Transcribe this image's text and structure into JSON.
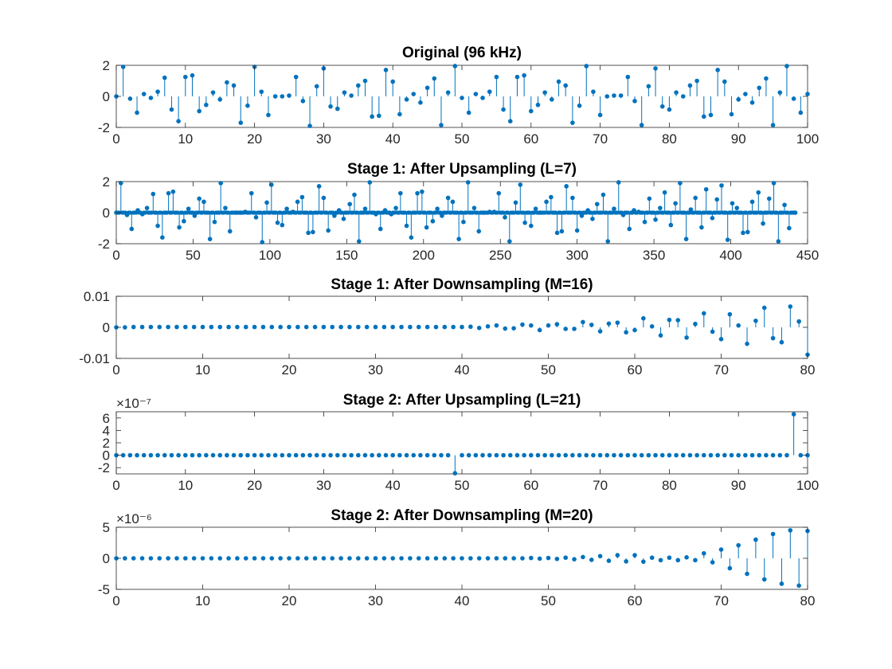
{
  "chart_data": [
    {
      "type": "stem",
      "title": "Original (96 kHz)",
      "xlim": [
        0,
        100
      ],
      "ylim": [
        -2,
        2
      ],
      "xticks": [
        0,
        10,
        20,
        30,
        40,
        50,
        60,
        70,
        80,
        90,
        100
      ],
      "xtick_labels": [
        "0",
        "10",
        "20",
        "30",
        "40",
        "50",
        "60",
        "70",
        "80",
        "90",
        "100"
      ],
      "yticks": [
        -2,
        0,
        2
      ],
      "ytick_labels": [
        "-2",
        "0",
        "2"
      ],
      "exponent_label": "",
      "x": [
        0,
        1,
        2,
        3,
        4,
        5,
        6,
        7,
        8,
        9,
        10,
        11,
        12,
        13,
        14,
        15,
        16,
        17,
        18,
        19,
        20,
        21,
        22,
        23,
        24,
        25,
        26,
        27,
        28,
        29,
        30,
        31,
        32,
        33,
        34,
        35,
        36,
        37,
        38,
        39,
        40,
        41,
        42,
        43,
        44,
        45,
        46,
        47,
        48,
        49,
        50,
        51,
        52,
        53,
        54,
        55,
        56,
        57,
        58,
        59,
        60,
        61,
        62,
        63,
        64,
        65,
        66,
        67,
        68,
        69,
        70,
        71,
        72,
        73,
        74,
        75,
        76,
        77,
        78,
        79,
        80,
        81,
        82,
        83,
        84,
        85,
        86,
        87,
        88,
        89,
        90,
        91,
        92,
        93,
        94,
        95,
        96,
        97,
        98,
        99,
        100
      ],
      "values": [
        0,
        1.9,
        -0.15,
        -1.05,
        0.15,
        -0.1,
        0.3,
        1.2,
        -0.85,
        -1.6,
        1.25,
        1.35,
        -0.95,
        -0.55,
        0.25,
        -0.2,
        0.9,
        0.7,
        -1.7,
        -0.6,
        1.9,
        0.3,
        -1.2,
        0.0,
        0.0,
        0.05,
        1.25,
        -0.3,
        -1.9,
        0.65,
        1.8,
        -0.65,
        -0.8,
        0.25,
        0.05,
        0.7,
        1.0,
        -1.3,
        -1.25,
        1.7,
        0.95,
        -1.15,
        -0.2,
        0.15,
        -0.4,
        0.55,
        1.15,
        -1.85,
        0.25,
        1.95,
        -0.1,
        -1.05,
        0.15,
        -0.1,
        0.3,
        1.25,
        -0.85,
        -1.6,
        1.25,
        1.35,
        -0.95,
        -0.55,
        0.25,
        -0.2,
        0.95,
        0.7,
        -1.7,
        -0.6,
        1.95,
        0.3,
        -1.2,
        0.0,
        0.05,
        0.05,
        1.25,
        -0.3,
        -1.85,
        0.65,
        1.8,
        -0.65,
        -0.85,
        0.25,
        0.0,
        0.7,
        1.0,
        -1.3,
        -1.2,
        1.7,
        0.95,
        -1.15,
        -0.2,
        0.15,
        -0.4,
        0.55,
        1.15,
        -1.85,
        0.25,
        1.95,
        -0.15,
        -1.05,
        0.15
      ]
    },
    {
      "type": "stem",
      "title": "Stage 1: After Upsampling (L=7)",
      "xlim": [
        0,
        450
      ],
      "ylim": [
        -2,
        2
      ],
      "xticks": [
        0,
        50,
        100,
        150,
        200,
        250,
        300,
        350,
        400,
        450
      ],
      "xtick_labels": [
        "0",
        "50",
        "100",
        "150",
        "200",
        "250",
        "300",
        "350",
        "400",
        "450"
      ],
      "yticks": [
        -2,
        0,
        2
      ],
      "ytick_labels": [
        "-2",
        "0",
        "2"
      ],
      "exponent_label": "",
      "x": [
        0,
        3,
        7,
        10,
        14,
        17,
        20,
        24,
        27,
        30,
        34,
        37,
        41,
        44,
        47,
        51,
        54,
        57,
        61,
        64,
        68,
        71,
        74,
        78,
        81,
        84,
        88,
        91,
        95,
        98,
        101,
        105,
        108,
        111,
        115,
        118,
        121,
        125,
        128,
        132,
        135,
        138,
        142,
        145,
        148,
        152,
        155,
        158,
        162,
        165,
        169,
        172,
        175,
        179,
        182,
        185,
        189,
        192,
        196,
        199,
        202,
        206,
        209,
        212,
        216,
        219,
        223,
        226,
        229,
        233,
        236,
        239,
        243,
        246,
        249,
        253,
        256,
        260,
        263,
        266,
        270,
        273,
        276,
        280,
        283,
        287,
        290,
        293,
        297,
        300,
        303,
        307,
        310,
        313,
        317,
        320,
        324,
        327,
        330,
        334,
        337,
        340,
        344,
        347,
        351,
        354,
        357,
        361,
        364,
        367,
        371,
        374,
        377,
        381,
        384,
        388,
        391,
        394,
        398,
        401,
        404,
        408,
        411,
        414,
        418,
        421,
        425,
        428,
        431,
        435,
        438,
        442
      ],
      "values": [
        0,
        1.9,
        -0.15,
        -1.05,
        0.15,
        -0.1,
        0.3,
        1.2,
        -0.85,
        -1.6,
        1.25,
        1.35,
        -0.95,
        -0.55,
        0.25,
        -0.2,
        0.9,
        0.7,
        -1.7,
        -0.6,
        1.9,
        0.3,
        -1.2,
        0.0,
        0.0,
        0.05,
        1.25,
        -0.3,
        -1.9,
        0.65,
        1.8,
        -0.65,
        -0.8,
        0.25,
        0.05,
        0.7,
        1.0,
        -1.3,
        -1.25,
        1.7,
        0.95,
        -1.15,
        -0.2,
        0.15,
        -0.4,
        0.55,
        1.15,
        -1.85,
        0.25,
        1.95,
        -0.1,
        -1.05,
        0.15,
        -0.1,
        0.3,
        1.25,
        -0.85,
        -1.6,
        1.25,
        1.35,
        -0.95,
        -0.55,
        0.25,
        -0.2,
        0.95,
        0.7,
        -1.7,
        -0.6,
        1.95,
        0.3,
        -1.2,
        0.0,
        0.05,
        0.05,
        1.25,
        -0.3,
        -1.85,
        0.65,
        1.8,
        -0.65,
        -0.85,
        0.25,
        0.0,
        0.7,
        1.0,
        -1.3,
        -1.2,
        1.7,
        0.95,
        -1.15,
        -0.2,
        0.15,
        -0.4,
        0.55,
        1.15,
        -1.85,
        0.25,
        1.95,
        -0.15,
        -1.05,
        0.15,
        0.05,
        -0.6,
        0.9,
        -0.45,
        0.3,
        1.3,
        -0.8,
        0.6,
        1.9,
        -1.7,
        0.2,
        0.95,
        -0.95,
        1.5,
        -0.35,
        0.85,
        1.75,
        -1.75,
        0.6,
        0.3,
        -1.3,
        -1.25,
        0.7,
        1.3,
        -0.7,
        0.9,
        1.9,
        -1.85,
        0.5,
        -1.0,
        0.0
      ],
      "zero_samples_between_nonzero": true
    },
    {
      "type": "stem",
      "title": "Stage 1: After Downsampling (M=16)",
      "xlim": [
        0,
        80
      ],
      "ylim": [
        -0.01,
        0.01
      ],
      "xticks": [
        0,
        10,
        20,
        30,
        40,
        50,
        60,
        70,
        80
      ],
      "xtick_labels": [
        "0",
        "10",
        "20",
        "30",
        "40",
        "50",
        "60",
        "70",
        "80"
      ],
      "yticks": [
        -0.01,
        0,
        0.01
      ],
      "ytick_labels": [
        "-0.01",
        "0",
        "0.01"
      ],
      "exponent_label": "",
      "x": [
        0,
        1,
        2,
        3,
        4,
        5,
        6,
        7,
        8,
        9,
        10,
        11,
        12,
        13,
        14,
        15,
        16,
        17,
        18,
        19,
        20,
        21,
        22,
        23,
        24,
        25,
        26,
        27,
        28,
        29,
        30,
        31,
        32,
        33,
        34,
        35,
        36,
        37,
        38,
        39,
        40,
        41,
        42,
        43,
        44,
        45,
        46,
        47,
        48,
        49,
        50,
        51,
        52,
        53,
        54,
        55,
        56,
        57,
        58,
        59,
        60,
        61,
        62,
        63,
        64,
        65,
        66,
        67,
        68,
        69,
        70,
        71,
        72,
        73,
        74,
        75,
        76,
        77,
        78,
        79,
        80
      ],
      "values": [
        0,
        0,
        0.0001,
        0.0001,
        0.0001,
        0.0001,
        0.0001,
        0.0001,
        0.0001,
        0.0001,
        0.0001,
        0.0001,
        0.0001,
        0.0001,
        0.0001,
        0.0001,
        0.0001,
        0.0001,
        0.0001,
        0.0001,
        0.0001,
        0.0001,
        0.0001,
        0.0001,
        0.0001,
        0.0001,
        0.0001,
        0.0001,
        0.0001,
        0.0001,
        0.0001,
        0.0001,
        0.0001,
        0.0001,
        0.0001,
        0.0001,
        0.0001,
        0.0001,
        0.0001,
        0.0001,
        0.0001,
        0.0002,
        -0.0002,
        0.0003,
        0.0006,
        -0.0004,
        -0.0003,
        0.0009,
        0.0006,
        -0.0009,
        0.0006,
        0.001,
        -0.0005,
        -0.0005,
        0.0017,
        0.0008,
        -0.0013,
        0.0012,
        0.0015,
        -0.0016,
        -0.0009,
        0.0029,
        0.0003,
        -0.0026,
        0.0024,
        0.0023,
        -0.0033,
        0.0011,
        0.0045,
        -0.0014,
        -0.0038,
        0.0042,
        0.0006,
        -0.0053,
        0.0021,
        0.0063,
        -0.0035,
        -0.0048,
        0.0067,
        0.0019,
        -0.0088
      ]
    },
    {
      "type": "stem",
      "title": "Stage 2: After Upsampling (L=21)",
      "xlim": [
        0,
        100
      ],
      "ylim": [
        -3e-07,
        7e-07
      ],
      "xticks": [
        0,
        10,
        20,
        30,
        40,
        50,
        60,
        70,
        80,
        90,
        100
      ],
      "xtick_labels": [
        "0",
        "10",
        "20",
        "30",
        "40",
        "50",
        "60",
        "70",
        "80",
        "90",
        "100"
      ],
      "yticks": [
        -2e-07,
        0,
        2e-07,
        4e-07,
        6e-07
      ],
      "ytick_labels": [
        "-2",
        "0",
        "2",
        "4",
        "6"
      ],
      "exponent_label": "×10⁻⁷",
      "x": [
        0,
        1,
        2,
        3,
        4,
        5,
        6,
        7,
        8,
        9,
        10,
        11,
        12,
        13,
        14,
        15,
        16,
        17,
        18,
        19,
        20,
        21,
        22,
        23,
        24,
        25,
        26,
        27,
        28,
        29,
        30,
        31,
        32,
        33,
        34,
        35,
        36,
        37,
        38,
        39,
        40,
        41,
        42,
        43,
        44,
        45,
        46,
        47,
        48,
        49,
        50,
        51,
        52,
        53,
        54,
        55,
        56,
        57,
        58,
        59,
        60,
        61,
        62,
        63,
        64,
        65,
        66,
        67,
        68,
        69,
        70,
        71,
        72,
        73,
        74,
        75,
        76,
        77,
        78,
        79,
        80,
        81,
        82,
        83,
        84,
        85,
        86,
        87,
        88,
        89,
        90,
        91,
        92,
        93,
        94,
        95,
        96,
        97,
        98,
        99,
        100
      ],
      "values": [
        0,
        0,
        0,
        0,
        0,
        0,
        0,
        0,
        0,
        0,
        0,
        0,
        0,
        0,
        0,
        0,
        0,
        0,
        0,
        0,
        0,
        0,
        0,
        0,
        0,
        0,
        0,
        0,
        0,
        0,
        0,
        0,
        0,
        0,
        0,
        0,
        0,
        0,
        0,
        0,
        0,
        0,
        0,
        0,
        0,
        0,
        0,
        0,
        0,
        -2.9e-07,
        0,
        0,
        0,
        0,
        0,
        0,
        0,
        0,
        0,
        0,
        0,
        0,
        0,
        0,
        0,
        0,
        0,
        0,
        0,
        0,
        0,
        0,
        0,
        0,
        0,
        0,
        0,
        0,
        0,
        0,
        0,
        0,
        0,
        0,
        0,
        0,
        0,
        0,
        0,
        0,
        0,
        0,
        0,
        0,
        0,
        0,
        0,
        0,
        6.6e-07,
        0,
        0
      ]
    },
    {
      "type": "stem",
      "title": "Stage 2: After Downsampling (M=20)",
      "xlim": [
        0,
        80
      ],
      "ylim": [
        -5e-06,
        5e-06
      ],
      "xticks": [
        0,
        10,
        20,
        30,
        40,
        50,
        60,
        70,
        80
      ],
      "xtick_labels": [
        "0",
        "10",
        "20",
        "30",
        "40",
        "50",
        "60",
        "70",
        "80"
      ],
      "yticks": [
        -5e-06,
        0,
        5e-06
      ],
      "ytick_labels": [
        "-5",
        "0",
        "5"
      ],
      "exponent_label": "×10⁻⁶",
      "x": [
        0,
        1,
        2,
        3,
        4,
        5,
        6,
        7,
        8,
        9,
        10,
        11,
        12,
        13,
        14,
        15,
        16,
        17,
        18,
        19,
        20,
        21,
        22,
        23,
        24,
        25,
        26,
        27,
        28,
        29,
        30,
        31,
        32,
        33,
        34,
        35,
        36,
        37,
        38,
        39,
        40,
        41,
        42,
        43,
        44,
        45,
        46,
        47,
        48,
        49,
        50,
        51,
        52,
        53,
        54,
        55,
        56,
        57,
        58,
        59,
        60,
        61,
        62,
        63,
        64,
        65,
        66,
        67,
        68,
        69,
        70,
        71,
        72,
        73,
        74,
        75,
        76,
        77,
        78,
        79,
        80
      ],
      "values": [
        0,
        0,
        0,
        0,
        0,
        0,
        0,
        0,
        0,
        0,
        0,
        0,
        0,
        0,
        0,
        0,
        0,
        0,
        0,
        0,
        0,
        0,
        0,
        0,
        0,
        0,
        0,
        0,
        0,
        0,
        0,
        0,
        0,
        0,
        0,
        0,
        0,
        0,
        0,
        0,
        0,
        0,
        0,
        0,
        0,
        0,
        0,
        0,
        5e-08,
        -5e-08,
        5e-08,
        -1e-07,
        1e-07,
        -1.5e-07,
        2e-07,
        -2.5e-07,
        3.5e-07,
        -4e-07,
        5e-07,
        -5e-07,
        5e-07,
        -5.5e-07,
        1e-07,
        -3e-07,
        1e-07,
        -3e-07,
        1.5e-07,
        -3e-07,
        8e-07,
        -6.5e-07,
        1.4e-06,
        -1.6e-06,
        2.1e-06,
        -2.5e-06,
        3e-06,
        -3.4e-06,
        3.9e-06,
        -4.1e-06,
        4.5e-06,
        -4.4e-06,
        4.4e-06
      ]
    }
  ],
  "style": {
    "stem_color": "#0072bd",
    "axis_color": "#262626",
    "background": "#ffffff"
  }
}
